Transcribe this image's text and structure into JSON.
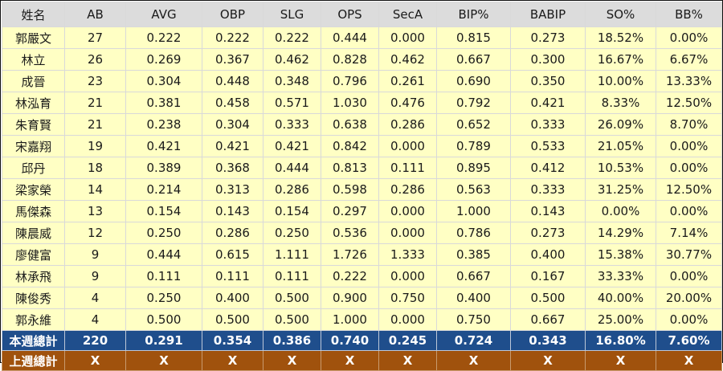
{
  "table": {
    "headers": [
      "姓名",
      "AB",
      "AVG",
      "OBP",
      "SLG",
      "OPS",
      "SecA",
      "BIP%",
      "BABIP",
      "SO%",
      "BB%"
    ],
    "rows": [
      [
        "郭嚴文",
        "27",
        "0.222",
        "0.222",
        "0.222",
        "0.444",
        "0.000",
        "0.815",
        "0.273",
        "18.52%",
        "0.00%"
      ],
      [
        "林立",
        "26",
        "0.269",
        "0.367",
        "0.462",
        "0.828",
        "0.462",
        "0.667",
        "0.300",
        "16.67%",
        "6.67%"
      ],
      [
        "成晉",
        "23",
        "0.304",
        "0.448",
        "0.348",
        "0.796",
        "0.261",
        "0.690",
        "0.350",
        "10.00%",
        "13.33%"
      ],
      [
        "林泓育",
        "21",
        "0.381",
        "0.458",
        "0.571",
        "1.030",
        "0.476",
        "0.792",
        "0.421",
        "8.33%",
        "12.50%"
      ],
      [
        "朱育賢",
        "21",
        "0.238",
        "0.304",
        "0.333",
        "0.638",
        "0.286",
        "0.652",
        "0.333",
        "26.09%",
        "8.70%"
      ],
      [
        "宋嘉翔",
        "19",
        "0.421",
        "0.421",
        "0.421",
        "0.842",
        "0.000",
        "0.789",
        "0.533",
        "21.05%",
        "0.00%"
      ],
      [
        "邱丹",
        "18",
        "0.389",
        "0.368",
        "0.444",
        "0.813",
        "0.111",
        "0.895",
        "0.412",
        "10.53%",
        "0.00%"
      ],
      [
        "梁家榮",
        "14",
        "0.214",
        "0.313",
        "0.286",
        "0.598",
        "0.286",
        "0.563",
        "0.333",
        "31.25%",
        "12.50%"
      ],
      [
        "馬傑森",
        "13",
        "0.154",
        "0.143",
        "0.154",
        "0.297",
        "0.000",
        "1.000",
        "0.143",
        "0.00%",
        "0.00%"
      ],
      [
        "陳晨威",
        "12",
        "0.250",
        "0.286",
        "0.250",
        "0.536",
        "0.000",
        "0.786",
        "0.273",
        "14.29%",
        "7.14%"
      ],
      [
        "廖健富",
        "9",
        "0.444",
        "0.615",
        "1.111",
        "1.726",
        "1.333",
        "0.385",
        "0.400",
        "15.38%",
        "30.77%"
      ],
      [
        "林承飛",
        "9",
        "0.111",
        "0.111",
        "0.111",
        "0.222",
        "0.000",
        "0.667",
        "0.167",
        "33.33%",
        "0.00%"
      ],
      [
        "陳俊秀",
        "4",
        "0.250",
        "0.400",
        "0.500",
        "0.900",
        "0.750",
        "0.400",
        "0.500",
        "40.00%",
        "20.00%"
      ],
      [
        "郭永維",
        "4",
        "0.500",
        "0.500",
        "0.500",
        "1.000",
        "0.000",
        "0.750",
        "0.667",
        "25.00%",
        "0.00%"
      ]
    ],
    "this_week_total": [
      "本週總計",
      "220",
      "0.291",
      "0.354",
      "0.386",
      "0.740",
      "0.245",
      "0.724",
      "0.343",
      "16.80%",
      "7.60%"
    ],
    "last_week_total": [
      "上週總計",
      "X",
      "X",
      "X",
      "X",
      "X",
      "X",
      "X",
      "X",
      "X",
      "X"
    ]
  },
  "colors": {
    "header_bg": "#dcdcdc",
    "row_bg": "#ffffc4",
    "this_week_bg": "#1f4e8c",
    "last_week_bg": "#a0520d"
  }
}
